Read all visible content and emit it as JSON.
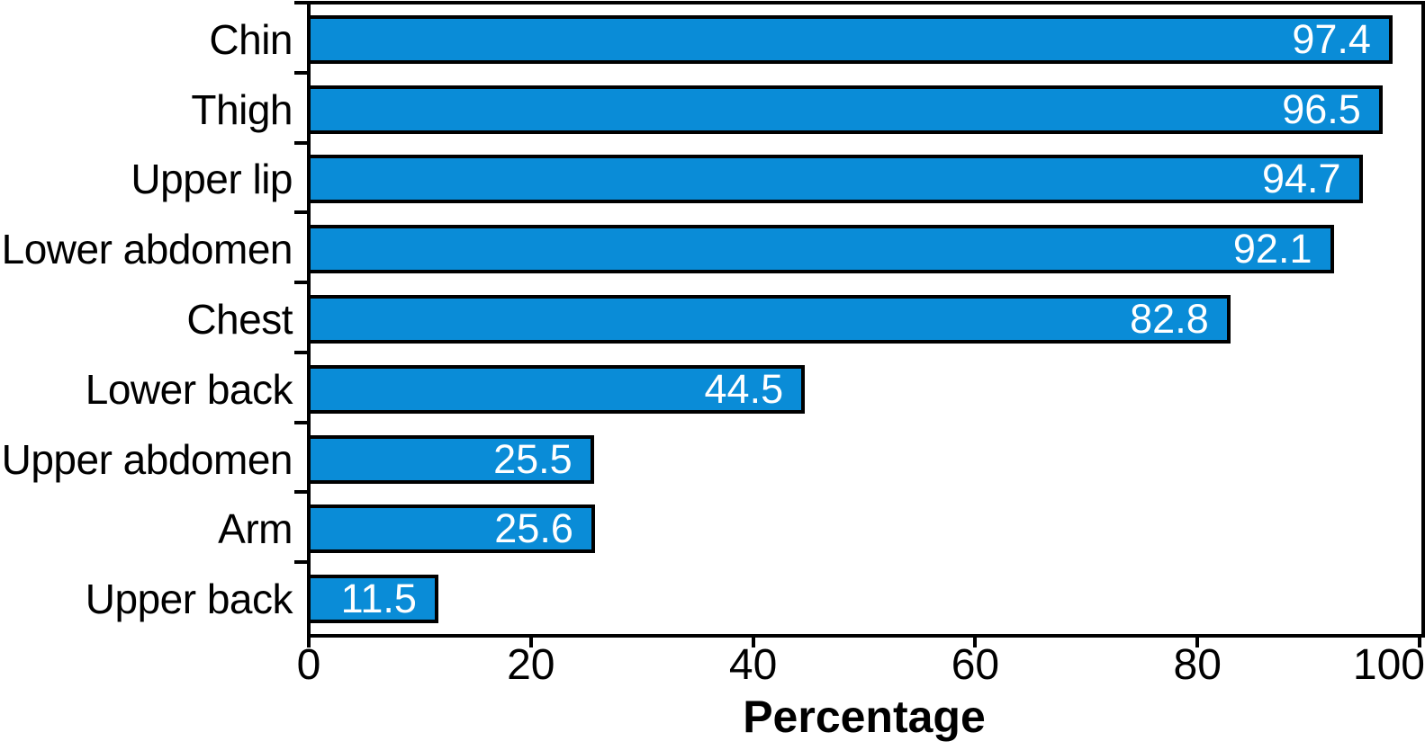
{
  "chart_data": {
    "type": "bar",
    "orientation": "horizontal",
    "title": "",
    "xlabel": "Percentage",
    "ylabel": "",
    "categories": [
      "Chin",
      "Thigh",
      "Upper lip",
      "Lower abdomen",
      "Chest",
      "Lower back",
      "Upper abdomen",
      "Arm",
      "Upper back"
    ],
    "values": [
      97.4,
      96.5,
      94.7,
      92.1,
      82.8,
      44.5,
      25.5,
      25.6,
      11.5
    ],
    "value_labels": [
      "97.4",
      "96.5",
      "94.7",
      "92.1",
      "82.8",
      "44.5",
      "25.5",
      "25.6",
      "11.5"
    ],
    "xlim": [
      0,
      100
    ],
    "x_ticks": [
      0,
      20,
      40,
      60,
      80,
      100
    ],
    "x_tick_labels": [
      "0",
      "20",
      "40",
      "60",
      "80",
      "100"
    ],
    "grid": false,
    "legend": null,
    "value_labels_position": "inside-end",
    "colors": {
      "bar_fill": "#0a8cd7",
      "bar_border": "#000000",
      "value_label_text": "#ffffff",
      "axis": "#000000",
      "background": "#ffffff"
    }
  }
}
